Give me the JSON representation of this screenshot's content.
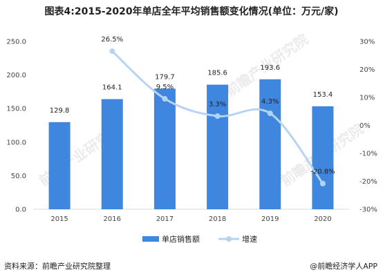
{
  "header": {
    "title": "图表4:2015-2020年单店全年平均销售额变化情况(单位：万元/家)"
  },
  "footer": {
    "source": "资料来源：前瞻产业研究院整理",
    "credit": "@前瞻经济学人APP"
  },
  "watermark": "前瞻产业研究院",
  "colors": {
    "bar": "#3f86de",
    "line": "#b6d4f2",
    "grid": "#d9d9d9"
  },
  "chart_data": {
    "type": "bar",
    "categories": [
      "2015",
      "2016",
      "2017",
      "2018",
      "2019",
      "2020"
    ],
    "series": [
      {
        "name": "单店销售额",
        "type": "bar",
        "axis": "left",
        "values": [
          129.8,
          164.1,
          179.7,
          185.6,
          193.6,
          153.4
        ],
        "labels": [
          "129.8",
          "164.1",
          "179.7",
          "185.6",
          "193.6",
          "153.4"
        ]
      },
      {
        "name": "增速",
        "type": "line",
        "axis": "right",
        "values": [
          null,
          26.5,
          9.5,
          3.3,
          4.3,
          -20.8
        ],
        "labels": [
          "",
          "26.5%",
          "9.5%",
          "3.3%",
          "4.3%",
          "-20.8%"
        ]
      }
    ],
    "y_left": {
      "range": [
        0,
        250
      ],
      "ticks": [
        0,
        50,
        100,
        150,
        200,
        250
      ],
      "tick_labels": [
        "0.0",
        "50.0",
        "100.0",
        "150.0",
        "200.0",
        "250.0"
      ]
    },
    "y_right": {
      "range": [
        -30,
        30
      ],
      "ticks": [
        -30,
        -20,
        -10,
        0,
        10,
        20,
        30
      ],
      "tick_labels": [
        "-30%",
        "-20%",
        "-10%",
        "0%",
        "10%",
        "20%",
        "30%"
      ]
    },
    "legend": {
      "position": "bottom",
      "items": [
        "单店销售额",
        "增速"
      ]
    },
    "grid": false
  }
}
